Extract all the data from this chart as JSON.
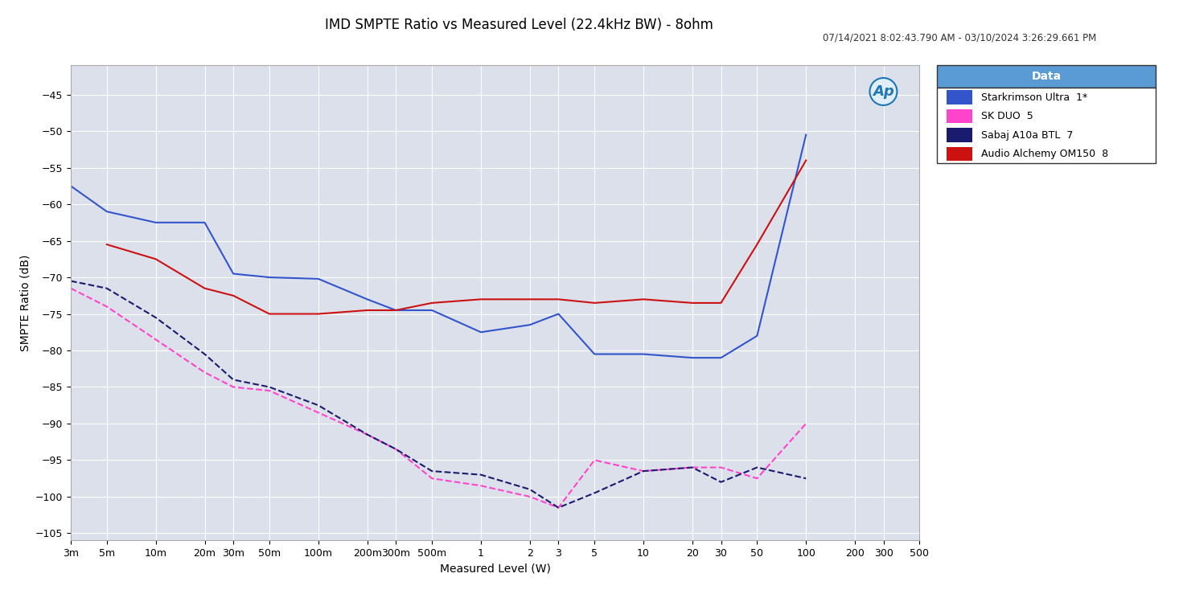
{
  "title": "IMD SMPTE Ratio vs Measured Level (22.4kHz BW) - 8ohm",
  "subtitle": "07/14/2021 8:02:43.790 AM - 03/10/2024 3:26:29.661 PM",
  "xlabel": "Measured Level (W)",
  "ylabel": "SMPTE Ratio (dB)",
  "background_color": "#ffffff",
  "plot_bg_color": "#ffffff",
  "grid_color": "#c8c8d8",
  "ylim": [
    -106,
    -41
  ],
  "yticks": [
    -45,
    -50,
    -55,
    -60,
    -65,
    -70,
    -75,
    -80,
    -85,
    -90,
    -95,
    -100,
    -105
  ],
  "x_labels": [
    "3m",
    "5m",
    "10m",
    "20m",
    "30m",
    "50m",
    "100m",
    "200m",
    "300m",
    "500m",
    "1",
    "2",
    "3",
    "5",
    "10",
    "20",
    "30",
    "50",
    "100",
    "200",
    "300",
    "500"
  ],
  "x_values": [
    0.003,
    0.005,
    0.01,
    0.02,
    0.03,
    0.05,
    0.1,
    0.2,
    0.3,
    0.5,
    1,
    2,
    3,
    5,
    10,
    20,
    30,
    50,
    100,
    200,
    300,
    500
  ],
  "series": [
    {
      "name": "Starkrimson Ultra  1*",
      "color": "#3355cc",
      "linestyle": "solid",
      "linewidth": 1.5,
      "y": [
        -57.5,
        -61.0,
        -62.5,
        -62.5,
        -69.5,
        -70.0,
        -70.2,
        -73.0,
        -74.5,
        -74.5,
        -77.5,
        -76.5,
        -75.0,
        -80.5,
        -80.5,
        -81.0,
        -81.0,
        -78.0,
        -50.5,
        null,
        null,
        null
      ]
    },
    {
      "name": "SK DUO  5",
      "color": "#ff44cc",
      "linestyle": "dashed",
      "linewidth": 1.5,
      "y": [
        -71.5,
        -74.0,
        -78.5,
        -83.0,
        -85.0,
        -85.5,
        -88.5,
        -91.5,
        -93.5,
        -97.5,
        -98.5,
        -100.0,
        -101.5,
        -95.0,
        -96.5,
        -96.0,
        -96.0,
        -97.5,
        -90.0,
        null,
        null,
        null
      ]
    },
    {
      "name": "Sabaj A10a BTL  7",
      "color": "#1a1a6e",
      "linestyle": "dashed",
      "linewidth": 1.5,
      "y": [
        -70.5,
        -71.5,
        -75.5,
        -80.5,
        -84.0,
        -85.0,
        -87.5,
        -91.5,
        -93.5,
        -96.5,
        -97.0,
        -99.0,
        -101.5,
        -99.5,
        -96.5,
        -96.0,
        -98.0,
        -96.0,
        -97.5,
        null,
        null,
        null
      ]
    },
    {
      "name": "Audio Alchemy OM150  8",
      "color": "#cc1111",
      "linestyle": "solid",
      "linewidth": 1.5,
      "y": [
        null,
        -65.5,
        -67.5,
        -71.5,
        -72.5,
        -75.0,
        -75.0,
        -74.5,
        -74.5,
        -73.5,
        -73.0,
        -73.0,
        -73.0,
        -73.5,
        -73.0,
        -73.5,
        -73.5,
        -65.5,
        -54.0,
        null,
        null,
        null
      ]
    }
  ],
  "legend_title": "Data",
  "legend_title_bg": "#5b9bd5",
  "legend_colors": [
    "#3355cc",
    "#ff44cc",
    "#1a1a6e",
    "#cc1111"
  ],
  "legend_names": [
    "Starkrimson Ultra  1*",
    "SK DUO  5",
    "Sabaj A10a BTL  7",
    "Audio Alchemy OM150  8"
  ],
  "legend_linestyles": [
    "solid",
    "dashed",
    "dashed",
    "solid"
  ]
}
